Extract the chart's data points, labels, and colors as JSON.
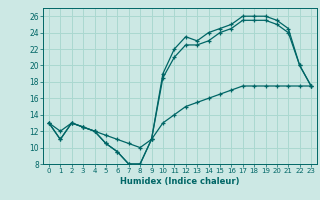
{
  "xlabel": "Humidex (Indice chaleur)",
  "ylabel": "",
  "background_color": "#cce8e4",
  "grid_color": "#aad8d0",
  "line_color": "#006666",
  "xlim": [
    -0.5,
    23.5
  ],
  "ylim": [
    8,
    27
  ],
  "xticks": [
    0,
    1,
    2,
    3,
    4,
    5,
    6,
    7,
    8,
    9,
    10,
    11,
    12,
    13,
    14,
    15,
    16,
    17,
    18,
    19,
    20,
    21,
    22,
    23
  ],
  "yticks": [
    8,
    10,
    12,
    14,
    16,
    18,
    20,
    22,
    24,
    26
  ],
  "line1_x": [
    0,
    1,
    2,
    3,
    4,
    5,
    6,
    7,
    8,
    9,
    10,
    11,
    12,
    13,
    14,
    15,
    16,
    17,
    18,
    19,
    20,
    21,
    22,
    23
  ],
  "line1_y": [
    13,
    11,
    13,
    12.5,
    12,
    10.5,
    9.5,
    8,
    8,
    11,
    19,
    22,
    23.5,
    23,
    24,
    24.5,
    25,
    26,
    26,
    26,
    25.5,
    24.5,
    20,
    17.5
  ],
  "line2_x": [
    0,
    1,
    2,
    3,
    4,
    5,
    6,
    7,
    8,
    9,
    10,
    11,
    12,
    13,
    14,
    15,
    16,
    17,
    18,
    19,
    20,
    21,
    22,
    23
  ],
  "line2_y": [
    13,
    11,
    13,
    12.5,
    12,
    10.5,
    9.5,
    8,
    8,
    11,
    18.5,
    21,
    22.5,
    22.5,
    23,
    24,
    24.5,
    25.5,
    25.5,
    25.5,
    25,
    24,
    20,
    17.5
  ],
  "line3_x": [
    0,
    1,
    2,
    3,
    4,
    5,
    6,
    7,
    8,
    9,
    10,
    11,
    12,
    13,
    14,
    15,
    16,
    17,
    18,
    19,
    20,
    21,
    22,
    23
  ],
  "line3_y": [
    13,
    12,
    13,
    12.5,
    12,
    11.5,
    11,
    10.5,
    10,
    11,
    13,
    14,
    15,
    15.5,
    16,
    16.5,
    17,
    17.5,
    17.5,
    17.5,
    17.5,
    17.5,
    17.5,
    17.5
  ]
}
